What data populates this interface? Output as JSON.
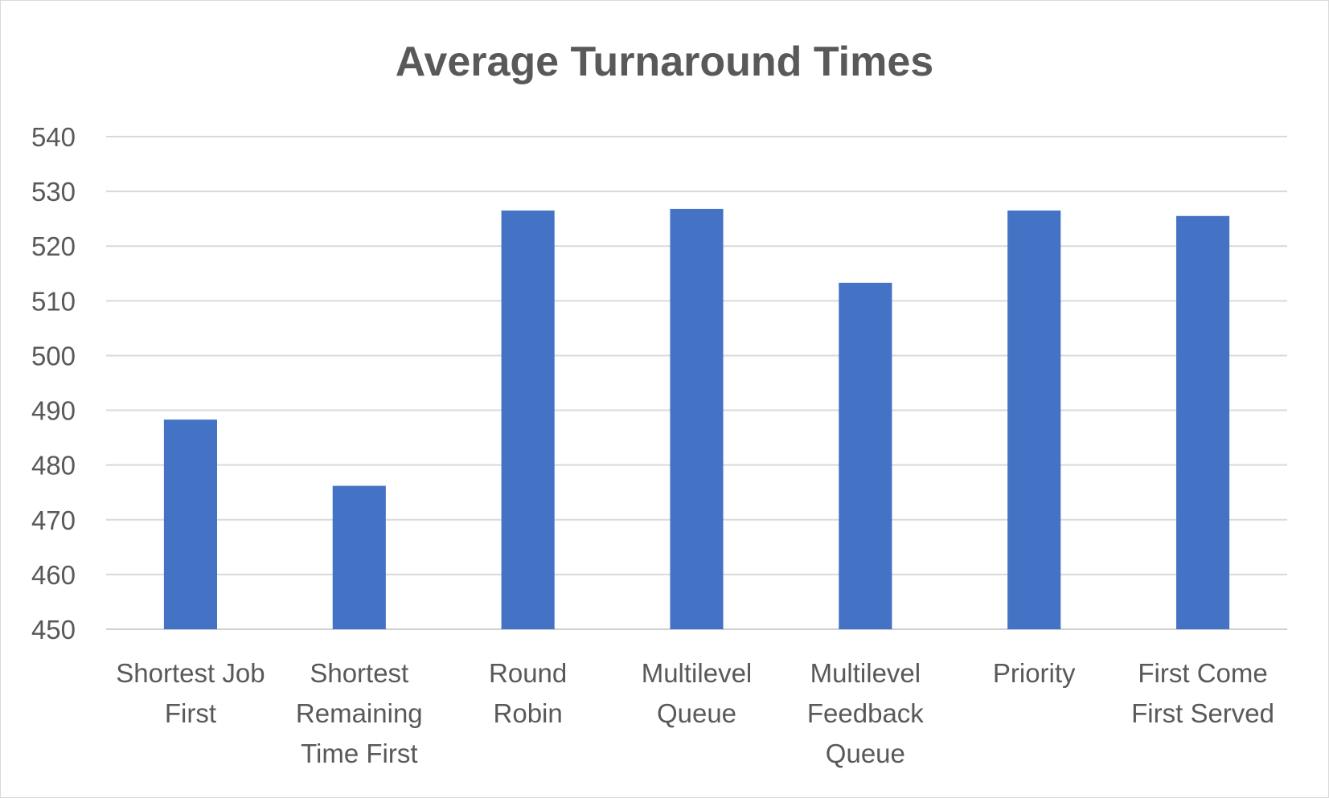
{
  "chart_data": {
    "type": "bar",
    "title": "Average Turnaround Times",
    "xlabel": "",
    "ylabel": "",
    "ylim": [
      450,
      540
    ],
    "yticks": [
      450,
      460,
      470,
      480,
      490,
      500,
      510,
      520,
      530,
      540
    ],
    "grid": true,
    "legend": "none",
    "bar_color": "#4472C4",
    "categories": [
      [
        "Shortest Job",
        "First"
      ],
      [
        "Shortest",
        "Remaining",
        "Time First"
      ],
      [
        "Round",
        "Robin"
      ],
      [
        "Multilevel",
        "Queue"
      ],
      [
        "Multilevel",
        "Feedback",
        "Queue"
      ],
      [
        "Priority"
      ],
      [
        "First Come",
        "First Served"
      ]
    ],
    "values": [
      488.3,
      476.2,
      526.5,
      526.8,
      513.3,
      526.5,
      525.5
    ]
  }
}
